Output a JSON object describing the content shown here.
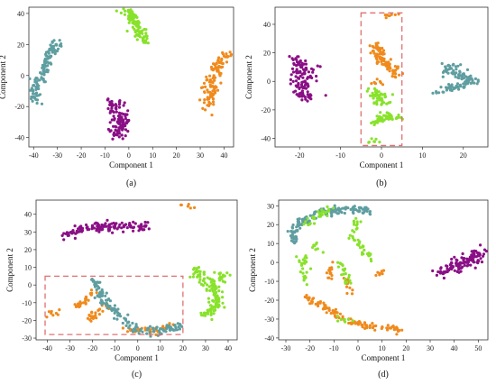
{
  "colors": {
    "purple": "#8a0f86",
    "orange": "#f08a1c",
    "teal": "#5f9ea0",
    "green": "#88e22a",
    "highlight": "#e07070"
  },
  "chart_data": [
    {
      "type": "scatter",
      "caption": "(a)",
      "xlabel": "Component 1",
      "ylabel": "Component 2",
      "xlim": [
        -42,
        44
      ],
      "ylim": [
        -46,
        44
      ],
      "xticks": [
        -40,
        -30,
        -20,
        -10,
        0,
        10,
        20,
        30,
        40
      ],
      "yticks": [
        -40,
        -20,
        0,
        20,
        40
      ],
      "highlight": null,
      "series": [
        {
          "color": "purple",
          "segments": [
            [
              [
                -5,
                -40
              ],
              [
                -3,
                -28
              ],
              [
                -6,
                -18
              ]
            ]
          ],
          "spread": 2.2,
          "n": 110
        },
        {
          "color": "orange",
          "segments": [
            [
              [
                33,
                -23
              ],
              [
                35,
                -5
              ],
              [
                37,
                5
              ],
              [
                41,
                15
              ]
            ]
          ],
          "spread": 1.5,
          "n": 110
        },
        {
          "color": "teal",
          "segments": [
            [
              [
                -40,
                -17
              ],
              [
                -37,
                -2
              ],
              [
                -35,
                8
              ],
              [
                -32,
                18
              ],
              [
                -29,
                21
              ]
            ]
          ],
          "spread": 1.4,
          "n": 120
        },
        {
          "color": "green",
          "segments": [
            [
              [
                -1,
                42
              ],
              [
                2,
                36
              ],
              [
                4,
                28
              ],
              [
                7,
                22
              ]
            ]
          ],
          "spread": 1.4,
          "n": 110
        }
      ]
    },
    {
      "type": "scatter",
      "caption": "(b)",
      "xlabel": "Component 1",
      "ylabel": "Component 2",
      "xlim": [
        -26,
        26
      ],
      "ylim": [
        -46,
        52
      ],
      "xticks": [
        -20,
        -10,
        0,
        10,
        20
      ],
      "yticks": [
        -40,
        -20,
        0,
        20,
        40
      ],
      "highlight": {
        "x": [
          -5,
          5
        ],
        "y": [
          -45,
          48
        ]
      },
      "series": [
        {
          "color": "purple",
          "segments": [
            [
              [
                -20,
                16
              ],
              [
                -19,
                5
              ],
              [
                -19,
                -5
              ],
              [
                -18,
                -12
              ]
            ]
          ],
          "spread": 1.5,
          "n": 120
        },
        {
          "color": "orange",
          "segments": [
            [
              [
                1,
                46
              ],
              [
                3,
                47
              ]
            ],
            [
              [
                -1,
                28
              ],
              [
                -1,
                18
              ],
              [
                1,
                12
              ],
              [
                3,
                8
              ],
              [
                4,
                4
              ]
            ],
            [
              [
                -1,
                0
              ],
              [
                -1,
                -2
              ]
            ]
          ],
          "spread": 0.9,
          "n": 110
        },
        {
          "color": "teal",
          "segments": [
            [
              [
                16,
                12
              ],
              [
                18,
                6
              ],
              [
                21,
                2
              ],
              [
                23,
                -1
              ]
            ],
            [
              [
                14,
                -8
              ],
              [
                18,
                -4
              ],
              [
                22,
                0
              ]
            ]
          ],
          "spread": 1.1,
          "n": 110
        },
        {
          "color": "green",
          "segments": [
            [
              [
                -2,
                -6
              ],
              [
                0,
                -10
              ],
              [
                0,
                -16
              ]
            ],
            [
              [
                -2,
                -30
              ],
              [
                1,
                -24
              ],
              [
                4,
                -26
              ]
            ],
            [
              [
                -2,
                -42
              ],
              [
                -1,
                -43
              ]
            ]
          ],
          "spread": 1.0,
          "n": 110
        }
      ]
    },
    {
      "type": "scatter",
      "caption": "(c)",
      "xlabel": "Component 1",
      "ylabel": "Component 2",
      "xlim": [
        -45,
        44
      ],
      "ylim": [
        -31,
        48
      ],
      "xticks": [
        -40,
        -30,
        -20,
        -10,
        0,
        10,
        20,
        30,
        40
      ],
      "yticks": [
        -30,
        -20,
        -10,
        0,
        10,
        20,
        30,
        40
      ],
      "highlight": {
        "x": [
          -41,
          20
        ],
        "y": [
          -28,
          5
        ]
      },
      "series": [
        {
          "color": "purple",
          "segments": [
            [
              [
                -33,
                28
              ],
              [
                -25,
                32
              ],
              [
                -15,
                33
              ],
              [
                -5,
                33
              ],
              [
                5,
                33
              ]
            ]
          ],
          "spread": 1.3,
          "n": 130
        },
        {
          "color": "orange",
          "segments": [
            [
              [
                -40,
                -16
              ],
              [
                -36,
                -16
              ]
            ],
            [
              [
                -28,
                -13
              ],
              [
                -24,
                -10
              ],
              [
                -20,
                -5
              ],
              [
                -18,
                -3
              ]
            ],
            [
              [
                -22,
                -20
              ],
              [
                -18,
                -16
              ],
              [
                -14,
                -11
              ]
            ],
            [
              [
                20,
                45
              ],
              [
                23,
                44
              ]
            ],
            [
              [
                -5,
                -25
              ],
              [
                5,
                -26
              ],
              [
                15,
                -24
              ]
            ]
          ],
          "spread": 1.0,
          "n": 110
        },
        {
          "color": "teal",
          "segments": [
            [
              [
                -20,
                3
              ],
              [
                -14,
                -10
              ],
              [
                -8,
                -18
              ],
              [
                0,
                -25
              ],
              [
                10,
                -26
              ],
              [
                19,
                -23
              ]
            ]
          ],
          "spread": 1.2,
          "n": 140
        },
        {
          "color": "green",
          "segments": [
            [
              [
                26,
                8
              ],
              [
                30,
                3
              ],
              [
                34,
                -2
              ],
              [
                35,
                -10
              ],
              [
                32,
                -16
              ],
              [
                28,
                -18
              ]
            ],
            [
              [
                36,
                4
              ],
              [
                40,
                5
              ]
            ]
          ],
          "spread": 1.6,
          "n": 140
        }
      ]
    },
    {
      "type": "scatter",
      "caption": "(d)",
      "xlabel": "Component 1",
      "ylabel": "Component 2",
      "xlim": [
        -33,
        54
      ],
      "ylim": [
        -41,
        33
      ],
      "xticks": [
        -30,
        -20,
        -10,
        0,
        10,
        20,
        30,
        40,
        50
      ],
      "yticks": [
        -40,
        -30,
        -20,
        -10,
        0,
        10,
        20,
        30
      ],
      "highlight": null,
      "series": [
        {
          "color": "purple",
          "segments": [
            [
              [
                34,
                -6
              ],
              [
                38,
                -4
              ],
              [
                42,
                -1
              ],
              [
                47,
                2
              ],
              [
                50,
                5
              ]
            ]
          ],
          "spread": 1.8,
          "n": 120
        },
        {
          "color": "orange",
          "segments": [
            [
              [
                -22,
                -18
              ],
              [
                -14,
                -24
              ],
              [
                -5,
                -30
              ],
              [
                5,
                -34
              ],
              [
                15,
                -35
              ],
              [
                18,
                -36
              ]
            ],
            [
              [
                -12,
                -2
              ],
              [
                -11,
                -8
              ]
            ],
            [
              [
                -5,
                -10
              ],
              [
                -3,
                -16
              ]
            ],
            [
              [
                7,
                -6
              ],
              [
                10,
                -5
              ]
            ]
          ],
          "spread": 0.9,
          "n": 140
        },
        {
          "color": "teal",
          "segments": [
            [
              [
                -28,
                15
              ],
              [
                -24,
                22
              ],
              [
                -17,
                26
              ],
              [
                -8,
                28
              ],
              [
                0,
                28
              ],
              [
                5,
                27
              ]
            ],
            [
              [
                -27,
                14
              ],
              [
                -26,
                10
              ]
            ]
          ],
          "spread": 1.1,
          "n": 150
        },
        {
          "color": "green",
          "segments": [
            [
              [
                -23,
                20
              ],
              [
                -16,
                26
              ],
              [
                -10,
                28
              ]
            ],
            [
              [
                -24,
                4
              ],
              [
                -22,
                -4
              ],
              [
                -22,
                -10
              ]
            ],
            [
              [
                -18,
                10
              ],
              [
                -16,
                6
              ]
            ],
            [
              [
                -8,
                0
              ],
              [
                -5,
                -6
              ],
              [
                -4,
                -12
              ]
            ],
            [
              [
                -8,
                -30
              ],
              [
                -4,
                -31
              ]
            ],
            [
              [
                0,
                24
              ],
              [
                -2,
                14
              ],
              [
                3,
                5
              ],
              [
                6,
                3
              ]
            ]
          ],
          "spread": 1.1,
          "n": 130
        }
      ]
    }
  ]
}
